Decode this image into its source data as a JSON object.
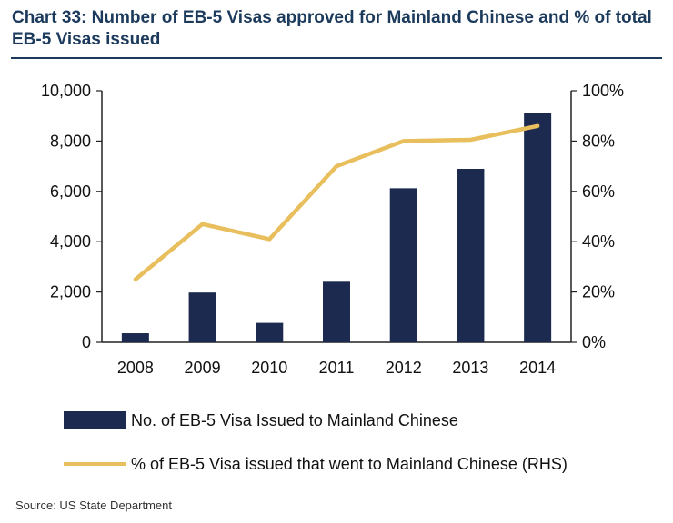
{
  "header": {
    "title": "Chart 33: Number of EB-5 Visas approved for Mainland Chinese and % of total EB-5 Visas issued"
  },
  "source": "Source: US State Department",
  "colors": {
    "bar": "#1b2a4e",
    "line": "#e8bf5c",
    "title": "#1b3a5c",
    "axis": "#222222"
  },
  "chart_data": {
    "type": "bar",
    "title": "Chart 33: Number of EB-5 Visas approved for Mainland Chinese and % of total EB-5 Visas issued",
    "categories": [
      "2008",
      "2009",
      "2010",
      "2011",
      "2012",
      "2013",
      "2014"
    ],
    "series": [
      {
        "name": "No. of EB-5 Visa Issued to Mainland Chinese",
        "type": "bar",
        "axis": "left",
        "values": [
          360,
          1979,
          772,
          2408,
          6124,
          6895,
          9128
        ]
      },
      {
        "name": "% of EB-5 Visa issued that went to Mainland Chinese (RHS)",
        "type": "line",
        "axis": "right",
        "values": [
          25,
          47,
          41,
          70,
          80,
          80.5,
          86
        ]
      }
    ],
    "left_axis": {
      "ylim": [
        0,
        10000
      ],
      "ticks": [
        0,
        2000,
        4000,
        6000,
        8000,
        10000
      ],
      "tick_labels": [
        "0",
        "2,000",
        "4,000",
        "6,000",
        "8,000",
        "10,000"
      ]
    },
    "right_axis": {
      "ylim": [
        0,
        100
      ],
      "ticks": [
        0,
        20,
        40,
        60,
        80,
        100
      ],
      "tick_labels": [
        "0%",
        "20%",
        "40%",
        "60%",
        "80%",
        "100%"
      ]
    },
    "xlabel": "",
    "ylabel": "",
    "grid": false,
    "legend_position": "bottom"
  }
}
